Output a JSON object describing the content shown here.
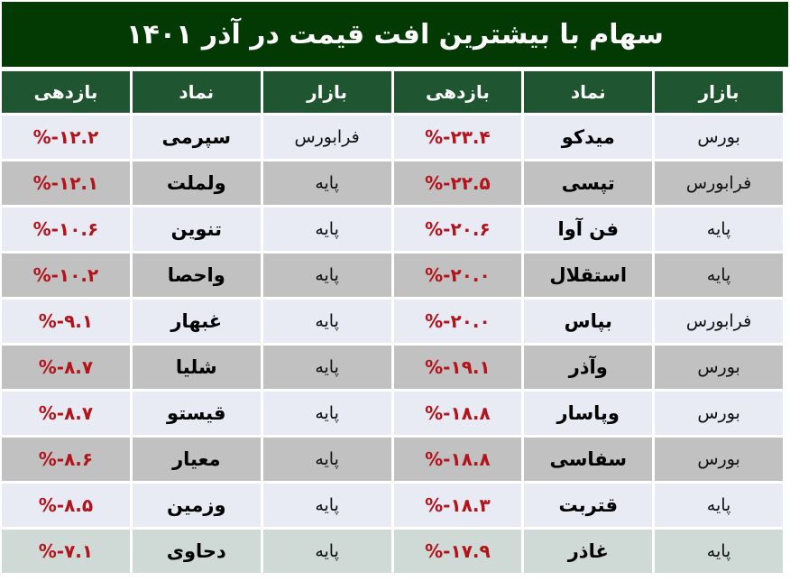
{
  "title": "سهام با بیشترین افت قیمت در آذر ۱۴۰۱",
  "headers": [
    "بازار",
    "نماد",
    "بازدهی",
    "بازار",
    "نماد",
    "بازدهی"
  ],
  "rows": [
    {
      "market1": "بورس",
      "symbol1": "میدکو",
      "return1": "%-۲۳.۴",
      "market2": "فرابورس",
      "symbol2": "سپرمی",
      "return2": "%-۱۲.۲"
    },
    {
      "market1": "فرابورس",
      "symbol1": "تپسی",
      "return1": "%-۲۲.۵",
      "market2": "پایه",
      "symbol2": "ولملت",
      "return2": "%-۱۲.۱"
    },
    {
      "market1": "پایه",
      "symbol1": "فن آوا",
      "return1": "%-۲۰.۶",
      "market2": "پایه",
      "symbol2": "تنوین",
      "return2": "%-۱۰.۶"
    },
    {
      "market1": "پایه",
      "symbol1": "استقلال",
      "return1": "%-۲۰.۰",
      "market2": "پایه",
      "symbol2": "واحصا",
      "return2": "%-۱۰.۲"
    },
    {
      "market1": "فرابورس",
      "symbol1": "بپاس",
      "return1": "%-۲۰.۰",
      "market2": "پایه",
      "symbol2": "غبهار",
      "return2": "%-۹.۱"
    },
    {
      "market1": "بورس",
      "symbol1": "وآذر",
      "return1": "%-۱۹.۱",
      "market2": "پایه",
      "symbol2": "شلیا",
      "return2": "%-۸.۷"
    },
    {
      "market1": "بورس",
      "symbol1": "وپاسار",
      "return1": "%-۱۸.۸",
      "market2": "پایه",
      "symbol2": "قیستو",
      "return2": "%-۸.۷"
    },
    {
      "market1": "بورس",
      "symbol1": "سفاسی",
      "return1": "%-۱۸.۸",
      "market2": "پایه",
      "symbol2": "معیار",
      "return2": "%-۸.۶"
    },
    {
      "market1": "پایه",
      "symbol1": "قتربت",
      "return1": "%-۱۸.۳",
      "market2": "پایه",
      "symbol2": "وزمین",
      "return2": "%-۸.۵"
    },
    {
      "market1": "پایه",
      "symbol1": "غاذر",
      "return1": "%-۱۷.۹",
      "market2": "پایه",
      "symbol2": "دحاوی",
      "return2": "%-۷.۱"
    }
  ],
  "colors": {
    "title_bg": "#033a03",
    "header_bg": "#1f5530",
    "return_text": "#b3141b"
  }
}
